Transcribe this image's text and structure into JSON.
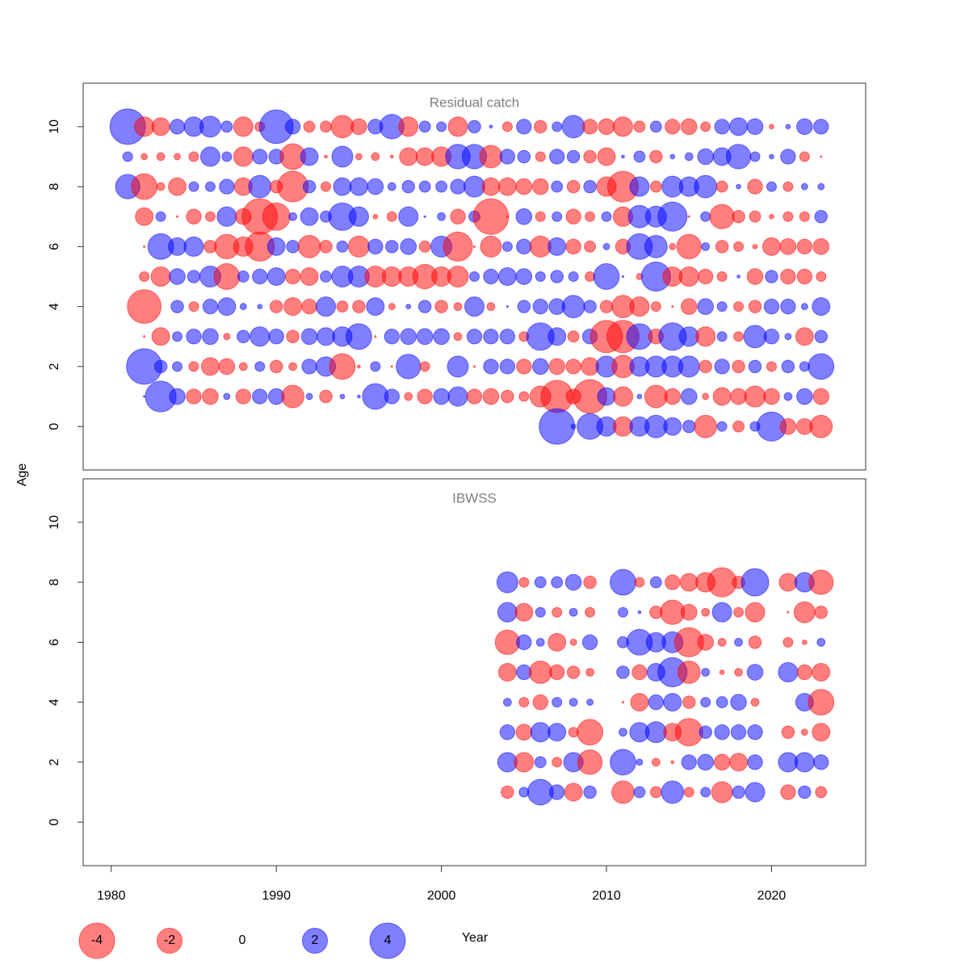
{
  "chart_data": [
    {
      "type": "bubble",
      "title": "Residual catch",
      "ylabel": "Age",
      "colors": {
        "negative": "#ff0000",
        "positive": "#0000ff"
      },
      "opacity": 0.5,
      "xlim": [
        1978.3,
        2025.7
      ],
      "ylim": [
        -1.45,
        11.45
      ],
      "yticks": [
        0,
        2,
        4,
        6,
        8,
        10
      ],
      "x": [
        1981,
        1982,
        1983,
        1984,
        1985,
        1986,
        1987,
        1988,
        1989,
        1990,
        1991,
        1992,
        1993,
        1994,
        1995,
        1996,
        1997,
        1998,
        1999,
        2000,
        2001,
        2002,
        2003,
        2004,
        2005,
        2006,
        2007,
        2008,
        2009,
        2010,
        2011,
        2012,
        2013,
        2014,
        2015,
        2016,
        2017,
        2018,
        2019,
        2020,
        2021,
        2022,
        2023
      ],
      "y": [
        10,
        9,
        8,
        7,
        6,
        5,
        4,
        3,
        2,
        1,
        0
      ],
      "values": [
        [
          4,
          -1.2,
          -1,
          0.7,
          1.2,
          1.4,
          0.4,
          -1.2,
          -0.3,
          3.6,
          0.7,
          -0.4,
          -0.4,
          -1.6,
          -0.8,
          0.7,
          1.9,
          -1.2,
          0.4,
          0.3,
          -1.2,
          0.5,
          0.03,
          -0.3,
          0.7,
          -0.5,
          0.3,
          1.6,
          -0.7,
          -0.8,
          -1.2,
          -0.4,
          0.4,
          -0.7,
          -0.8,
          -0.3,
          0.7,
          1,
          0.8,
          -0.07,
          0.07,
          0.8,
          0.7
        ],
        [
          0.3,
          -0.13,
          -0.2,
          -0.13,
          -0.3,
          1.2,
          0.3,
          -1.2,
          0.7,
          0.7,
          -2.1,
          1,
          -0.03,
          1.4,
          -0.13,
          -0.2,
          -0.03,
          -1,
          -1,
          -1.2,
          1.9,
          1.9,
          -1.6,
          0.7,
          0.5,
          -0.3,
          0.7,
          0.5,
          -0.5,
          -1,
          0.03,
          0.4,
          -0.5,
          0.07,
          0.2,
          0.8,
          1,
          1.9,
          0.3,
          0.07,
          0.7,
          -0.3,
          -0.01
        ],
        [
          1.9,
          -2.1,
          -0.2,
          -1,
          0.3,
          0.3,
          0.7,
          -1,
          1.6,
          -0.5,
          -3,
          0.5,
          -0.3,
          1,
          1,
          0.8,
          0.2,
          0.5,
          0.4,
          0.4,
          0.7,
          1.4,
          -1,
          -1,
          -0.8,
          -0.8,
          0.4,
          -0.5,
          0.5,
          -1.2,
          -3,
          1.2,
          -0.4,
          1.4,
          1.2,
          1.6,
          -0.4,
          0.07,
          -0.7,
          0.3,
          -0.3,
          0.13,
          0.13
        ],
        [
          null,
          -1,
          0.3,
          -0.01,
          -0.7,
          -0.3,
          1.2,
          -0.8,
          -4,
          -2.4,
          0.2,
          1,
          0.4,
          2.4,
          1.2,
          -0.07,
          -0.3,
          1.2,
          0.01,
          0.2,
          -0.7,
          0.4,
          -4,
          -0.01,
          0.8,
          -0.3,
          0.3,
          -0.7,
          -0.3,
          0.3,
          -1.2,
          1.6,
          1.4,
          2.7,
          -0.01,
          0.3,
          -1.9,
          -0.5,
          -0.4,
          -0.07,
          -0.3,
          -0.3,
          0.5
        ],
        [
          null,
          -0.01,
          2.1,
          1,
          1.2,
          -0.5,
          -1.9,
          -1.2,
          -2.7,
          1,
          0.5,
          -1.6,
          -0.5,
          0.4,
          -1.4,
          0.7,
          0.5,
          0.8,
          -0.4,
          1.4,
          -2.7,
          -0.01,
          -1.4,
          0.3,
          0.7,
          -1.4,
          1,
          -0.7,
          -0.4,
          0.13,
          -0.7,
          2.1,
          1.6,
          -0.13,
          -1.9,
          0.2,
          -0.5,
          -0.3,
          -0.07,
          -1,
          -0.8,
          -0.7,
          -0.8
        ],
        [
          null,
          -0.3,
          -1.2,
          0.8,
          0.5,
          1.4,
          -2.1,
          0.4,
          0.7,
          1,
          -0.7,
          -1,
          0.4,
          1.4,
          1.4,
          -1.4,
          -1.2,
          -1.2,
          -1.9,
          -1.2,
          -1.4,
          0.3,
          0.7,
          1,
          0.8,
          0.3,
          0.5,
          0.3,
          -0.3,
          2.1,
          0.01,
          -0.13,
          2.7,
          -1.2,
          -1.2,
          -0.7,
          -0.3,
          0.03,
          -0.8,
          0.5,
          -0.7,
          -0.7,
          -0.3
        ],
        [
          null,
          -3.6,
          null,
          0.5,
          -0.3,
          0.7,
          1,
          0.13,
          0.07,
          -0.5,
          -1,
          -0.7,
          1.2,
          -0.4,
          -0.5,
          1,
          -0.13,
          0.07,
          0.5,
          -0.5,
          -0.2,
          1.2,
          -0.2,
          0.01,
          0.5,
          0.7,
          0.8,
          1.6,
          0.5,
          -0.5,
          -1.6,
          -1.2,
          -0.3,
          -0.01,
          -0.8,
          0.8,
          0.3,
          -0.3,
          -0.5,
          0.7,
          0.7,
          0.13,
          1
        ],
        [
          null,
          -0.01,
          -1,
          0.3,
          0.7,
          0.8,
          -0.13,
          0.5,
          1.2,
          0.7,
          -0.5,
          0.8,
          1,
          1.2,
          2.1,
          -0.01,
          0.7,
          0.8,
          0.8,
          0.8,
          -0.2,
          0.7,
          0.7,
          0.7,
          -0.3,
          2.4,
          1,
          -0.4,
          0.7,
          -3.3,
          -3.3,
          2.1,
          -0.7,
          2.4,
          1.2,
          -1.2,
          0.3,
          -0.3,
          1.6,
          0.7,
          0.13,
          -1,
          0.5
        ],
        [
          null,
          4,
          0.5,
          0.3,
          -0.3,
          -1,
          -0.8,
          -0.2,
          0.3,
          -0.5,
          -0.2,
          0.7,
          1.2,
          -2.1,
          -0.03,
          0.3,
          -0.01,
          1.9,
          -0.3,
          null,
          1.4,
          -0.01,
          0.7,
          0.7,
          -0.7,
          0.8,
          -0.8,
          -0.7,
          -1,
          1.4,
          -1.6,
          1.2,
          1.4,
          1.4,
          1.4,
          -0.5,
          0.7,
          -0.5,
          0.5,
          -0.3,
          0.5,
          0.3,
          2.1
        ],
        [
          null,
          0.01,
          3,
          0.8,
          -0.7,
          -0.8,
          0.13,
          -0.7,
          0.7,
          0.8,
          -1.6,
          0.13,
          -0.5,
          0.07,
          0.03,
          2.1,
          0.7,
          -0.2,
          -0.7,
          0.8,
          1.2,
          -0.7,
          -0.8,
          -0.5,
          -0.3,
          -1.4,
          -3.3,
          -0.7,
          -3.6,
          1,
          -1.2,
          0.07,
          -1.6,
          -0.8,
          0.8,
          -0.13,
          -1,
          -0.8,
          -1.4,
          -0.8,
          0.2,
          0.8,
          -0.8
        ],
        [
          null,
          null,
          null,
          null,
          null,
          null,
          null,
          null,
          null,
          null,
          null,
          null,
          null,
          null,
          null,
          null,
          null,
          null,
          null,
          null,
          null,
          null,
          null,
          null,
          null,
          null,
          4,
          0.07,
          2.1,
          1.2,
          -1.2,
          1.2,
          1.6,
          1,
          0.5,
          -1.6,
          0.3,
          -0.4,
          0.3,
          2.7,
          -0.8,
          -0.8,
          -1.6
        ]
      ]
    },
    {
      "type": "bubble",
      "title": "IBWSS",
      "xlabel": "Year",
      "colors": {
        "negative": "#ff0000",
        "positive": "#0000ff"
      },
      "opacity": 0.5,
      "xlim": [
        1978.3,
        2025.7
      ],
      "xticks": [
        1980,
        1990,
        2000,
        2010,
        2020
      ],
      "ylim": [
        -1.45,
        11.45
      ],
      "yticks": [
        0,
        2,
        4,
        6,
        8,
        10
      ],
      "legend": [
        -4,
        -2,
        0,
        2,
        4
      ],
      "x": [
        2004,
        2005,
        2006,
        2007,
        2008,
        2009,
        2010,
        2011,
        2012,
        2013,
        2014,
        2015,
        2016,
        2017,
        2018,
        2019,
        2020,
        2021,
        2022,
        2023
      ],
      "y": [
        8,
        7,
        6,
        5,
        4,
        3,
        2,
        1
      ],
      "values": [
        [
          1.4,
          -0.3,
          0.4,
          0.4,
          0.8,
          -0.5,
          null,
          2.1,
          -0.3,
          0.4,
          -0.7,
          -1,
          -1.2,
          -2.7,
          -0.5,
          2.4,
          null,
          -1,
          1.2,
          -1.9
        ],
        [
          1.2,
          -1,
          0.3,
          -0.3,
          0.2,
          -0.3,
          null,
          0.3,
          0.03,
          -0.5,
          -1.9,
          -0.8,
          -0.2,
          1.2,
          -0.3,
          -1.2,
          null,
          -0.01,
          -1.4,
          -0.5
        ],
        [
          -1.9,
          0.7,
          0.2,
          -1,
          -0.13,
          0.7,
          null,
          0.4,
          2.1,
          1.2,
          1.4,
          -2.7,
          -0.8,
          -0.2,
          0.2,
          -0.5,
          null,
          -0.3,
          -0.07,
          0.2
        ],
        [
          -1,
          0.7,
          -1.6,
          -0.7,
          -0.5,
          -0.2,
          null,
          0.5,
          -0.7,
          1,
          2.7,
          -1.6,
          0.2,
          -0.07,
          -0.2,
          0.8,
          null,
          1.2,
          -0.7,
          -1
        ],
        [
          0.2,
          -0.3,
          -0.7,
          0.3,
          0.2,
          0.13,
          null,
          -0.01,
          -1,
          0.7,
          1,
          -0.5,
          0.3,
          0.4,
          0.8,
          -0.2,
          null,
          null,
          1,
          -2.1
        ],
        [
          0.7,
          -0.8,
          1.2,
          1,
          -0.3,
          -2.1,
          null,
          0.2,
          1.2,
          1.4,
          -1,
          -2.4,
          0.5,
          0.7,
          0.7,
          0.7,
          null,
          -0.5,
          -0.13,
          -1
        ],
        [
          1.2,
          -1.2,
          0.4,
          -0.3,
          1.2,
          -1.9,
          null,
          2.1,
          0.13,
          -0.2,
          -0.03,
          0.7,
          0.8,
          -0.8,
          -1,
          0.7,
          null,
          1.2,
          1.2,
          0.7
        ],
        [
          -0.5,
          0.3,
          2.1,
          0.7,
          -1,
          0.5,
          null,
          -1.6,
          0.4,
          -0.4,
          1.6,
          -0.3,
          0.3,
          -1.4,
          0.5,
          1.2,
          null,
          -0.7,
          0.5,
          -0.4
        ]
      ]
    }
  ]
}
